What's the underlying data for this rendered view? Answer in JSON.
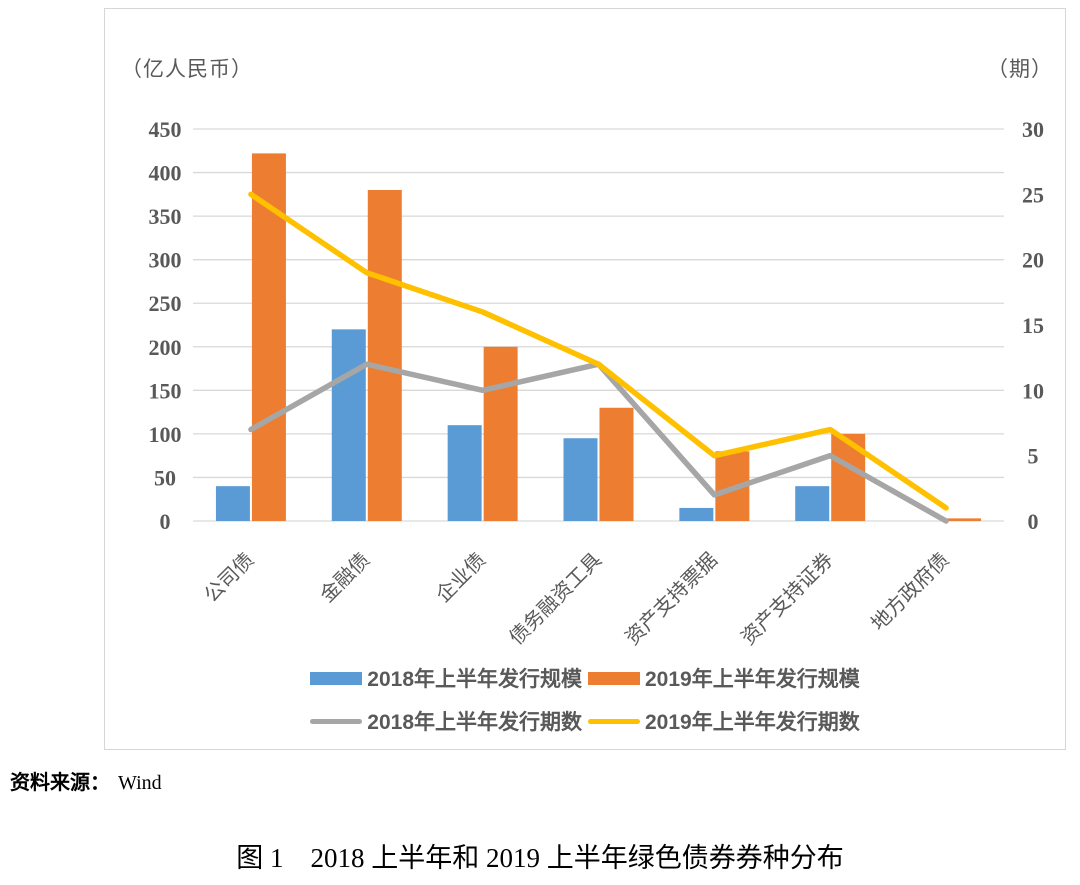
{
  "figure": {
    "source_label": "资料来源：",
    "source_value": "Wind",
    "caption": "图 1　2018 上半年和 2019 上半年绿色债券券种分布"
  },
  "chart_data": {
    "type": "combo",
    "title": "2018 上半年和 2019 上半年绿色债券券种分布",
    "categories": [
      "公司债",
      "金融债",
      "企业债",
      "债务融资工具",
      "资产支持票据",
      "资产支持证券",
      "地方政府债"
    ],
    "series": [
      {
        "name": "2018年上半年发行规模",
        "type": "bar",
        "axis": "left",
        "color": "#5B9BD5",
        "values": [
          40,
          220,
          110,
          95,
          15,
          40,
          0
        ]
      },
      {
        "name": "2019年上半年发行规模",
        "type": "bar",
        "axis": "left",
        "color": "#ED7D31",
        "values": [
          422,
          380,
          200,
          130,
          80,
          100,
          3
        ]
      },
      {
        "name": "2018年上半年发行期数",
        "type": "line",
        "axis": "right",
        "color": "#A6A6A6",
        "values": [
          7,
          12,
          10,
          12,
          2,
          5,
          0
        ]
      },
      {
        "name": "2019年上半年发行期数",
        "type": "line",
        "axis": "right",
        "color": "#FFC000",
        "values": [
          25,
          19,
          16,
          12,
          5,
          7,
          1
        ]
      }
    ],
    "left_axis": {
      "unit": "（亿人民币）",
      "min": 0,
      "max": 450,
      "step": 50
    },
    "right_axis": {
      "unit": "（期）",
      "min": 0,
      "max": 30,
      "step": 5
    },
    "grid": true,
    "gridline_color": "#d9d9d9",
    "legend_position": "bottom"
  }
}
